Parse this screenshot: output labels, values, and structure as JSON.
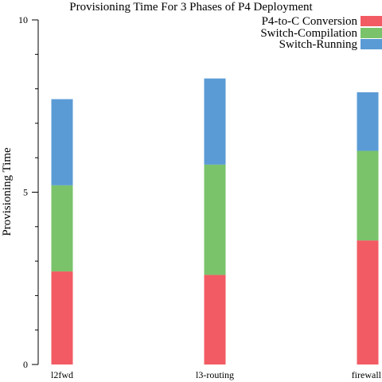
{
  "chart_data": {
    "type": "bar",
    "stacked": true,
    "title": "Provisioning Time For 3 Phases of P4 Deployment",
    "xlabel": "",
    "ylabel": "Provisioning Time",
    "ylim": [
      0,
      10
    ],
    "yticks": [
      "0",
      "5",
      "10"
    ],
    "grid": false,
    "legend_position": "top-right",
    "categories": [
      "l2fwd",
      "l3-routing",
      "firewall"
    ],
    "series": [
      {
        "name": "P4-to-C Conversion",
        "color": "#f25b63",
        "values": [
          2.7,
          2.6,
          3.6
        ]
      },
      {
        "name": "Switch-Compilation",
        "color": "#7ac36a",
        "values": [
          2.5,
          3.2,
          2.6
        ]
      },
      {
        "name": "Switch-Running",
        "color": "#5a9bd5",
        "values": [
          2.5,
          2.5,
          1.7
        ]
      }
    ]
  }
}
